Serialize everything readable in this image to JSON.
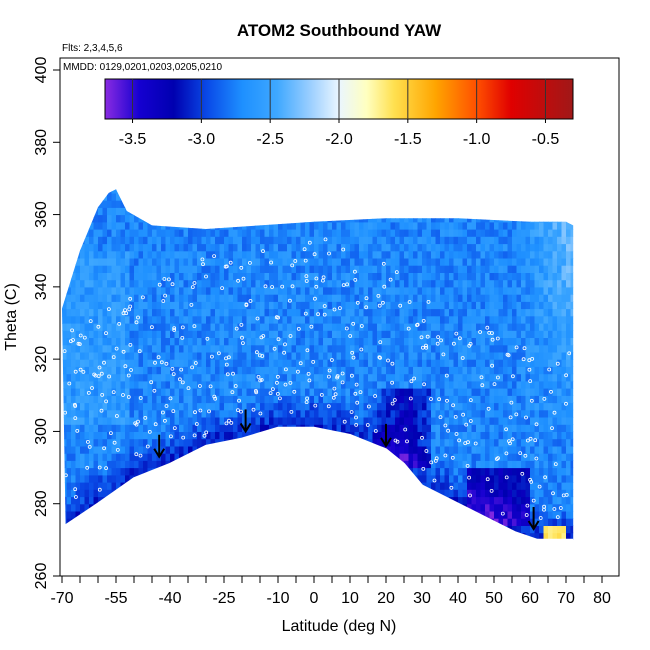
{
  "chart_data": {
    "type": "heatmap",
    "title": "ATOM2 Southbound YAW",
    "flights_note": "Flts: 2,3,4,5,6",
    "dates_note": "MMDD: 0129,0201,0203,0205,0210",
    "xlabel": "Latitude (deg N)",
    "ylabel": "Theta (C)",
    "xlim": [
      -70,
      80
    ],
    "ylim": [
      260,
      400
    ],
    "x_ticks": [
      -70,
      -55,
      -40,
      -25,
      -10,
      0,
      10,
      20,
      30,
      40,
      50,
      60,
      70,
      80
    ],
    "x_tick_labels": [
      "-70",
      "-55",
      "-40",
      "-25",
      "-10",
      "0",
      "10",
      "20",
      "30",
      "40",
      "50",
      "60",
      "70",
      "80"
    ],
    "x_minor_ticks": [
      -65,
      -60,
      -50,
      -45,
      -35,
      -30,
      -20,
      -15,
      -5,
      5,
      15,
      25,
      35,
      45,
      55,
      65,
      75
    ],
    "y_ticks": [
      260,
      280,
      300,
      320,
      340,
      360,
      380,
      400
    ],
    "y_tick_labels": [
      "260",
      "280",
      "300",
      "320",
      "340",
      "360",
      "380",
      "400"
    ],
    "colorbar": {
      "min": -3.7,
      "max": -0.3,
      "ticks": [
        -3.5,
        -3.0,
        -2.5,
        -2.0,
        -1.5,
        -1.0,
        -0.5
      ],
      "tick_labels": [
        "-3.5",
        "-3.0",
        "-2.5",
        "-2.0",
        "-1.5",
        "-1.0",
        "-0.5"
      ],
      "stops": [
        {
          "v": -3.7,
          "c": "#8a2be2"
        },
        {
          "v": -3.45,
          "c": "#1500d0"
        },
        {
          "v": -3.2,
          "c": "#0000b0"
        },
        {
          "v": -2.95,
          "c": "#0a4ce8"
        },
        {
          "v": -2.7,
          "c": "#1e90ff"
        },
        {
          "v": -2.45,
          "c": "#3fa8ff"
        },
        {
          "v": -2.2,
          "c": "#9ed0ff"
        },
        {
          "v": -2.0,
          "c": "#eaf6ff"
        },
        {
          "v": -1.8,
          "c": "#ffffc0"
        },
        {
          "v": -1.6,
          "c": "#ffe050"
        },
        {
          "v": -1.3,
          "c": "#ffa500"
        },
        {
          "v": -1.0,
          "c": "#ff5000"
        },
        {
          "v": -0.75,
          "c": "#e00000"
        },
        {
          "v": -0.3,
          "c": "#a01818"
        }
      ]
    },
    "tropopause": [
      {
        "lat": -69,
        "theta": 274
      },
      {
        "lat": -60,
        "theta": 280
      },
      {
        "lat": -50,
        "theta": 287
      },
      {
        "lat": -45,
        "theta": 289
      },
      {
        "lat": -40,
        "theta": 291
      },
      {
        "lat": -30,
        "theta": 296
      },
      {
        "lat": -20,
        "theta": 298
      },
      {
        "lat": -10,
        "theta": 301
      },
      {
        "lat": 0,
        "theta": 301
      },
      {
        "lat": 10,
        "theta": 299
      },
      {
        "lat": 20,
        "theta": 295
      },
      {
        "lat": 25,
        "theta": 291
      },
      {
        "lat": 30,
        "theta": 285
      },
      {
        "lat": 40,
        "theta": 280
      },
      {
        "lat": 50,
        "theta": 275
      },
      {
        "lat": 56,
        "theta": 272
      },
      {
        "lat": 62,
        "theta": 270
      },
      {
        "lat": 68,
        "theta": 270
      },
      {
        "lat": 72,
        "theta": 270
      }
    ],
    "top_boundary": [
      {
        "lat": -70,
        "theta": 334
      },
      {
        "lat": -65,
        "theta": 350
      },
      {
        "lat": -60,
        "theta": 362
      },
      {
        "lat": -57,
        "theta": 366
      },
      {
        "lat": -55,
        "theta": 367
      },
      {
        "lat": -52,
        "theta": 361
      },
      {
        "lat": -45,
        "theta": 357
      },
      {
        "lat": -30,
        "theta": 356
      },
      {
        "lat": -15,
        "theta": 357
      },
      {
        "lat": 0,
        "theta": 358
      },
      {
        "lat": 20,
        "theta": 359
      },
      {
        "lat": 40,
        "theta": 359
      },
      {
        "lat": 60,
        "theta": 358
      },
      {
        "lat": 70,
        "theta": 358
      },
      {
        "lat": 72,
        "theta": 357
      },
      {
        "lat": 72,
        "theta": 275
      }
    ],
    "arrows": [
      {
        "lat": -43,
        "theta": 293
      },
      {
        "lat": -19,
        "theta": 300
      },
      {
        "lat": 20,
        "theta": 296
      },
      {
        "lat": 61,
        "theta": 273
      }
    ]
  }
}
